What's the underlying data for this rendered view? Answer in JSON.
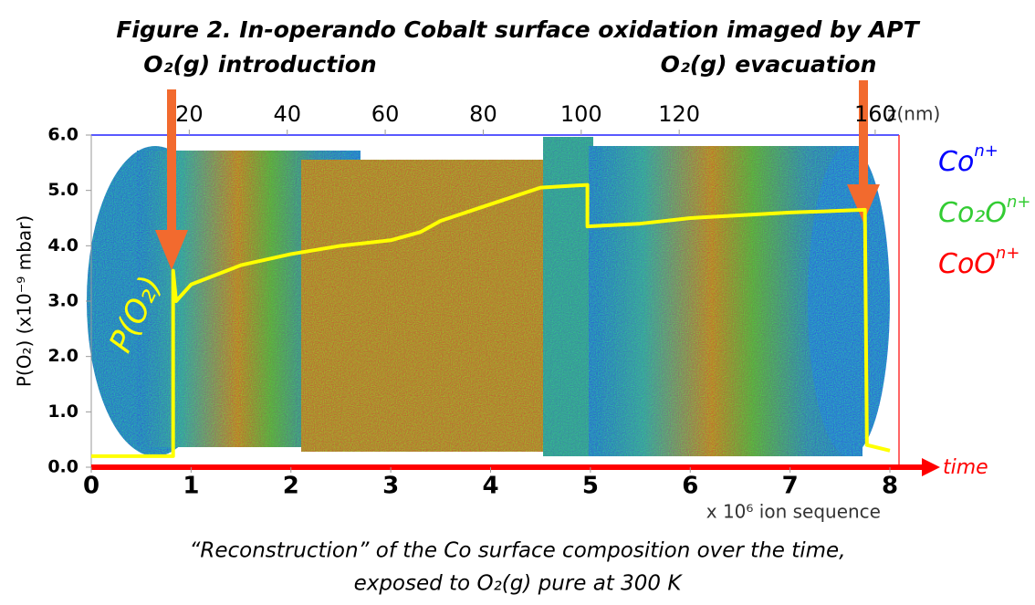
{
  "chart_data": {
    "type": "line",
    "title": "Figure 2. In-operando Cobalt surface oxidation imaged by APT",
    "annotations": [
      "O₂(g) introduction",
      "O₂(g) evacuation",
      "P(O₂)",
      "time"
    ],
    "caption": [
      "“Reconstruction” of the Co surface composition over the time,",
      "exposed to O₂(g) pure at 300 K"
    ],
    "xlabel": "x 10⁶ ion sequence",
    "ylabel": "P(O₂) (x10⁻⁹ mbar)",
    "x2label": "z(nm)",
    "xlim": [
      0,
      8
    ],
    "xticks": [
      0,
      1,
      2,
      3,
      4,
      5,
      6,
      7,
      8
    ],
    "x2lim": [
      0,
      163
    ],
    "x2ticks": [
      20,
      40,
      60,
      80,
      100,
      120,
      160
    ],
    "ylim": [
      0,
      6
    ],
    "yticks": [
      {
        "value": 0,
        "label": "0.0"
      },
      {
        "value": 1,
        "label": "1.0"
      },
      {
        "value": 2,
        "label": "2.0"
      },
      {
        "value": 3,
        "label": "3.0"
      },
      {
        "value": 4,
        "label": "4.0"
      },
      {
        "value": 5,
        "label": "5.0"
      },
      {
        "value": 6,
        "label": "6.0"
      }
    ],
    "x": [
      0,
      0.82,
      0.82,
      0.85,
      1.0,
      1.5,
      2.0,
      2.5,
      3.0,
      3.3,
      3.5,
      4.0,
      4.5,
      4.97,
      4.97,
      5.5,
      6.0,
      7.0,
      7.75,
      7.77,
      8.0
    ],
    "series": [
      {
        "name": "P(O₂)",
        "color": "#ffff00",
        "values": [
          0.2,
          0.2,
          3.55,
          3.0,
          3.3,
          3.65,
          3.85,
          4.0,
          4.1,
          4.25,
          4.45,
          4.75,
          5.05,
          5.1,
          4.35,
          4.4,
          4.5,
          4.6,
          4.65,
          0.4,
          0.3
        ]
      }
    ],
    "legend": [
      {
        "name": "Co",
        "sup": "n+",
        "color": "#0000ff"
      },
      {
        "name": "Co₂O",
        "sup": "n+",
        "color": "#33cc33"
      },
      {
        "name": "CoO",
        "sup": "n+",
        "color": "#ff0000"
      }
    ]
  }
}
